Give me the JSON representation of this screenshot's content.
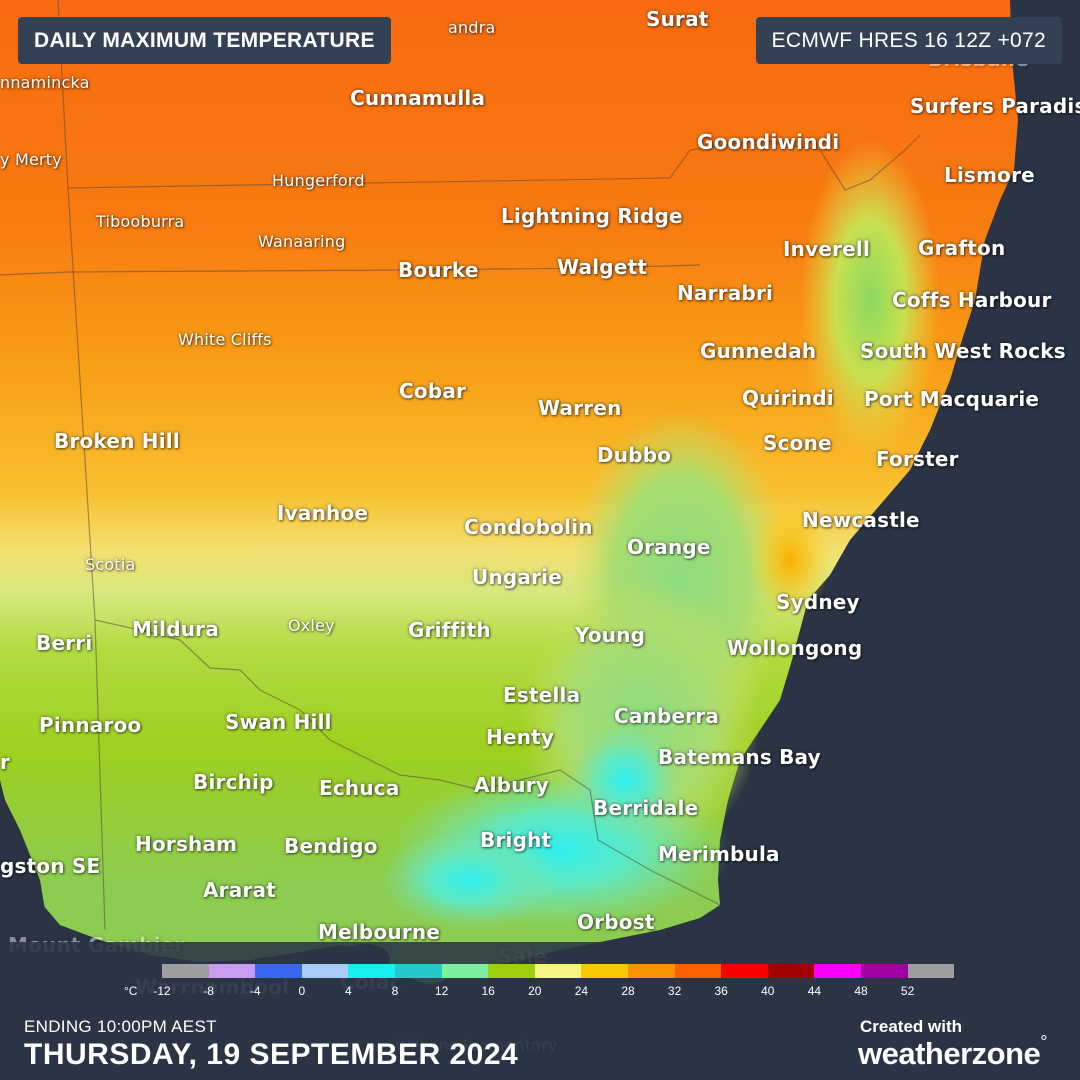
{
  "header": {
    "title": "DAILY MAXIMUM TEMPERATURE",
    "model": "ECMWF HRES 16 12Z +072"
  },
  "map": {
    "cities": [
      {
        "name": "andra",
        "size": "small"
      },
      {
        "name": "Surat",
        "size": "big"
      },
      {
        "name": "Brisbane",
        "size": "big"
      },
      {
        "name": "nnamincka",
        "size": "small"
      },
      {
        "name": "Cunnamulla",
        "size": "big"
      },
      {
        "name": "Surfers Paradise",
        "size": "big"
      },
      {
        "name": "Goondiwindi",
        "size": "big"
      },
      {
        "name": "y Merty",
        "size": "small"
      },
      {
        "name": "Hungerford",
        "size": "small"
      },
      {
        "name": "Lismore",
        "size": "big"
      },
      {
        "name": "Tibooburra",
        "size": "small"
      },
      {
        "name": "Lightning Ridge",
        "size": "big"
      },
      {
        "name": "Wanaaring",
        "size": "small"
      },
      {
        "name": "Inverell",
        "size": "big"
      },
      {
        "name": "Grafton",
        "size": "big"
      },
      {
        "name": "Bourke",
        "size": "big"
      },
      {
        "name": "Walgett",
        "size": "big"
      },
      {
        "name": "Narrabri",
        "size": "big"
      },
      {
        "name": "Coffs Harbour",
        "size": "big"
      },
      {
        "name": "White Cliffs",
        "size": "small"
      },
      {
        "name": "Gunnedah",
        "size": "big"
      },
      {
        "name": "South West Rocks",
        "size": "big"
      },
      {
        "name": "Cobar",
        "size": "big"
      },
      {
        "name": "Quirindi",
        "size": "big"
      },
      {
        "name": "Port Macquarie",
        "size": "big"
      },
      {
        "name": "Warren",
        "size": "big"
      },
      {
        "name": "Broken Hill",
        "size": "big"
      },
      {
        "name": "Scone",
        "size": "big"
      },
      {
        "name": "Dubbo",
        "size": "big"
      },
      {
        "name": "Forster",
        "size": "big"
      },
      {
        "name": "Ivanhoe",
        "size": "big"
      },
      {
        "name": "Condobolin",
        "size": "big"
      },
      {
        "name": "Newcastle",
        "size": "big"
      },
      {
        "name": "Orange",
        "size": "big"
      },
      {
        "name": "Scotia",
        "size": "small"
      },
      {
        "name": "Ungarie",
        "size": "big"
      },
      {
        "name": "Sydney",
        "size": "big"
      },
      {
        "name": "Berri",
        "size": "big"
      },
      {
        "name": "Mildura",
        "size": "big"
      },
      {
        "name": "Oxley",
        "size": "small"
      },
      {
        "name": "Griffith",
        "size": "big"
      },
      {
        "name": "Young",
        "size": "big"
      },
      {
        "name": "Wollongong",
        "size": "big"
      },
      {
        "name": "Estella",
        "size": "big"
      },
      {
        "name": "Pinnaroo",
        "size": "big"
      },
      {
        "name": "Swan Hill",
        "size": "big"
      },
      {
        "name": "Canberra",
        "size": "big"
      },
      {
        "name": "Henty",
        "size": "big"
      },
      {
        "name": "Batemans Bay",
        "size": "big"
      },
      {
        "name": "r",
        "size": "big"
      },
      {
        "name": "Birchip",
        "size": "big"
      },
      {
        "name": "Echuca",
        "size": "big"
      },
      {
        "name": "Albury",
        "size": "big"
      },
      {
        "name": "Berridale",
        "size": "big"
      },
      {
        "name": "Horsham",
        "size": "big"
      },
      {
        "name": "Bendigo",
        "size": "big"
      },
      {
        "name": "Bright",
        "size": "big"
      },
      {
        "name": "Merimbula",
        "size": "big"
      },
      {
        "name": "gston SE",
        "size": "big"
      },
      {
        "name": "Ararat",
        "size": "big"
      },
      {
        "name": "Orbost",
        "size": "big"
      },
      {
        "name": "Melbourne",
        "size": "big"
      },
      {
        "name": "Mount Gambier",
        "size": "big"
      },
      {
        "name": "Sale",
        "size": "big"
      },
      {
        "name": "Warrnambool",
        "size": "big"
      },
      {
        "name": "Colac",
        "size": "big"
      },
      {
        "name": "Wilsons Promontory",
        "size": "small"
      }
    ]
  },
  "legend": {
    "unit": "°C",
    "ticks": [
      "-12",
      "-8",
      "-4",
      "0",
      "4",
      "8",
      "12",
      "16",
      "20",
      "24",
      "28",
      "32",
      "36",
      "40",
      "44",
      "48",
      "52"
    ],
    "colors": [
      "#9e9e9e",
      "#c89cf0",
      "#3b66f0",
      "#a8ccf8",
      "#18f0f0",
      "#26c8c8",
      "#7cf0a0",
      "#9ed010",
      "#f4f480",
      "#f8c800",
      "#f89400",
      "#f86000",
      "#f80000",
      "#a00000",
      "#f800f8",
      "#a000a0",
      "#9e9e9e"
    ]
  },
  "footer": {
    "ending": "ENDING 10:00PM AEST",
    "date": "THURSDAY, 19 SEPTEMBER 2024",
    "created_with": "Created with",
    "brand_a": "weather",
    "brand_b": "zone",
    "brand_mark": "°"
  }
}
